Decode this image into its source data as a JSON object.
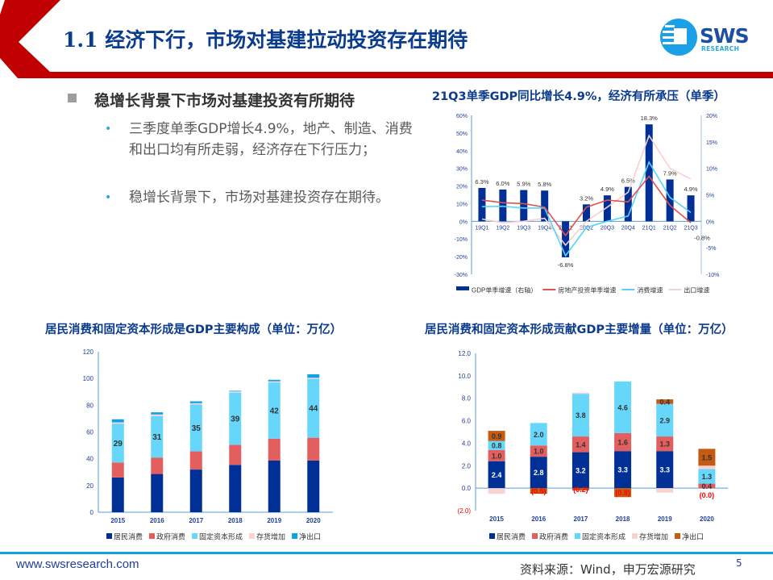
{
  "header": {
    "title": "1.1 经济下行，市场对基建拉动投资存在期待",
    "logo_text": "SWS",
    "logo_sub": "RESEARCH",
    "accent": "#c00000"
  },
  "left": {
    "heading": "稳增长背景下市场对基建投资有所期待",
    "bullets": [
      "三季度单季GDP增长4.9%，地产、制造、消费和出口均有所走弱，经济存在下行压力；",
      "稳增长背景下，市场对基建投资存在期待。"
    ]
  },
  "footer": {
    "url": "www.swsresearch.com",
    "source": "资料来源：Wind，申万宏源研究",
    "page": "5"
  },
  "chart_data": [
    {
      "type": "bar+line",
      "title": "21Q3单季GDP同比增长4.9%，经济有所承压（单季）",
      "categories": [
        "19Q1",
        "19Q2",
        "19Q3",
        "19Q4",
        "20Q1",
        "20Q2",
        "20Q3",
        "20Q4",
        "21Q1",
        "21Q2",
        "21Q3"
      ],
      "ylim_left": [
        -30,
        60
      ],
      "yticks_left": [
        "60%",
        "50%",
        "40%",
        "30%",
        "20%",
        "10%",
        "0%",
        "-10%",
        "-20%",
        "-30%"
      ],
      "ylim_right": [
        -10,
        20
      ],
      "yticks_right": [
        "20%",
        "15%",
        "10%",
        "5%",
        "0%",
        "-5%",
        "-10%"
      ],
      "series": [
        {
          "name": "GDP单季增速（右轴）",
          "type": "bar",
          "axis": "right",
          "color": "#003096",
          "values": [
            6.3,
            6.0,
            5.9,
            5.8,
            -6.8,
            3.2,
            4.9,
            6.5,
            18.3,
            7.9,
            4.9
          ],
          "labels": [
            "6.3%",
            "6.0%",
            "5.9%",
            "5.8%",
            "-6.8%",
            "3.2%",
            "4.9%",
            "6.5%",
            "18.3%",
            "7.9%",
            "4.9%"
          ]
        },
        {
          "name": "房地产投资单季增速",
          "type": "line",
          "axis": "left",
          "color": "#e0504f",
          "values": [
            12,
            10.5,
            10,
            8,
            -8,
            8,
            12,
            11,
            25.5,
            9,
            -0.8
          ]
        },
        {
          "name": "消费增速",
          "type": "line",
          "axis": "left",
          "color": "#58d4f8",
          "values": [
            8.3,
            8.5,
            7.5,
            7.5,
            -19.5,
            -3.5,
            0,
            3,
            33.5,
            13.5,
            5
          ]
        },
        {
          "name": "出口增速",
          "type": "line",
          "axis": "left",
          "color": "#f8cfcf",
          "values": [
            1.3,
            -0.8,
            0,
            1.7,
            -13.5,
            0,
            8,
            16.5,
            48.5,
            30,
            24
          ]
        }
      ],
      "annotation": "-0.8%"
    },
    {
      "type": "stacked-bar",
      "title": "居民消费和固定资本形成是GDP主要构成（单位：万亿）",
      "categories": [
        "2015",
        "2016",
        "2017",
        "2018",
        "2019",
        "2020"
      ],
      "ylim": [
        0,
        120
      ],
      "yticks": [
        "120",
        "100",
        "80",
        "60",
        "40",
        "20",
        "0"
      ],
      "series": [
        {
          "name": "居民消费",
          "color": "#003096",
          "values": [
            26,
            28.6,
            31.9,
            35.4,
            38.6,
            38.7
          ]
        },
        {
          "name": "政府消费",
          "color": "#e35f5f",
          "values": [
            11.2,
            12.3,
            13.6,
            15,
            16.4,
            17
          ]
        },
        {
          "name": "固定资本形成",
          "color": "#66d7fb",
          "values": [
            29,
            31,
            35,
            39,
            42,
            44
          ],
          "labels": [
            "29",
            "31",
            "35",
            "39",
            "42",
            "44"
          ]
        },
        {
          "name": "存货增加",
          "color": "#f8d3d3",
          "values": [
            1,
            1.2,
            1,
            0.9,
            0.9,
            0.8
          ]
        },
        {
          "name": "净出口",
          "color": "#10a3e3",
          "values": [
            2.3,
            1.6,
            1.4,
            0.5,
            1.1,
            2.6
          ]
        }
      ]
    },
    {
      "type": "stacked-bar",
      "title": "居民消费和固定资本形成贡献GDP主要增量（单位：万亿）",
      "categories": [
        "2015",
        "2016",
        "2017",
        "2018",
        "2019",
        "2020"
      ],
      "ylim": [
        -2,
        12
      ],
      "yticks": [
        "12.0",
        "10.0",
        "8.0",
        "6.0",
        "4.0",
        "2.0",
        "0.0",
        "(2.0)"
      ],
      "series": [
        {
          "name": "居民消费",
          "color": "#003096",
          "values": [
            2.4,
            2.8,
            3.2,
            3.3,
            3.3,
            0
          ],
          "labels": [
            "2.4",
            "2.8",
            "3.2",
            "3.3",
            "3.3",
            "(0.0)"
          ]
        },
        {
          "name": "政府消费",
          "color": "#e35f5f",
          "values": [
            1.0,
            1.0,
            1.4,
            1.6,
            1.3,
            0.4
          ],
          "labels": [
            "1.0",
            "1.0",
            "1.4",
            "1.6",
            "1.3",
            "0.4"
          ]
        },
        {
          "name": "固定资本形成",
          "color": "#66d7fb",
          "values": [
            0.8,
            2.0,
            3.8,
            4.6,
            2.9,
            1.3
          ],
          "labels": [
            "0.8",
            "2.0",
            "3.8",
            "4.6",
            "2.9",
            "1.3"
          ]
        },
        {
          "name": "存货增加",
          "color": "#f8d3d3",
          "values": [
            -0.5,
            0,
            0.1,
            0,
            -0.4,
            0.3
          ]
        },
        {
          "name": "净出口",
          "color": "#c55a11",
          "values": [
            0.9,
            -0.5,
            -0.2,
            -0.8,
            0.4,
            1.5
          ],
          "labels": [
            "0.9",
            "(0.5)",
            "(0.2)",
            "(0.8)",
            "0.4",
            "1.5"
          ]
        }
      ]
    }
  ]
}
